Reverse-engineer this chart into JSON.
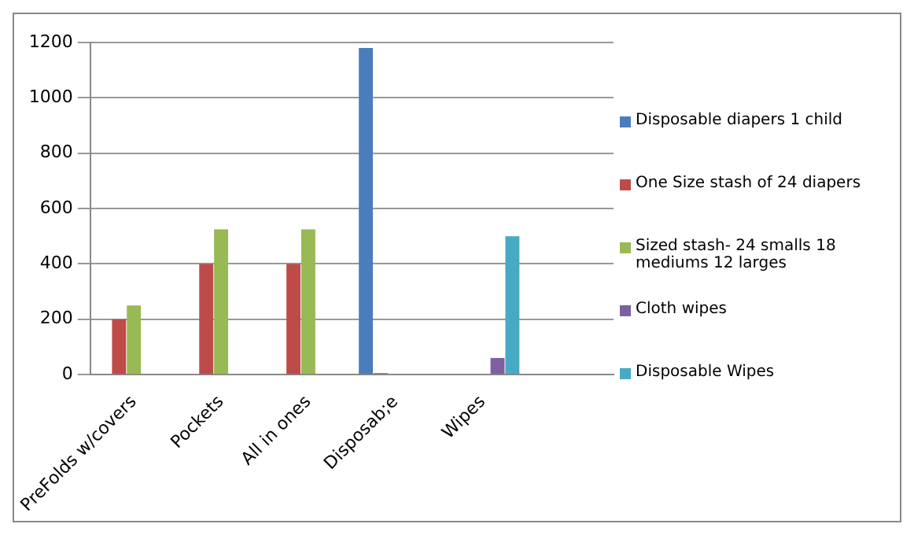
{
  "chart_data": {
    "type": "bar",
    "categories": [
      "PreFolds w/covers",
      "Pockets",
      "All in ones",
      "Disposab;e",
      "Wipes",
      null
    ],
    "series": [
      {
        "name": "Disposable diapers 1 child",
        "color": "#4a7ebb",
        "values": [
          null,
          null,
          null,
          1180,
          null,
          null
        ]
      },
      {
        "name": "One Size stash of 24 diapers",
        "color": "#be4b48",
        "values": [
          200,
          400,
          400,
          5,
          null,
          null
        ]
      },
      {
        "name": "Sized stash-  24 smalls 18 mediums 12 larges",
        "color": "#98b954",
        "values": [
          250,
          525,
          525,
          null,
          null,
          null
        ]
      },
      {
        "name": "Cloth wipes",
        "color": "#7d60a0",
        "values": [
          null,
          null,
          null,
          null,
          60,
          null
        ]
      },
      {
        "name": "Disposable Wipes",
        "color": "#46aac5",
        "values": [
          null,
          null,
          null,
          null,
          500,
          null
        ]
      }
    ],
    "ylim": [
      0,
      1200
    ],
    "yticks": [
      0,
      200,
      400,
      600,
      800,
      1000,
      1200
    ],
    "grid": "y",
    "legend": "right"
  }
}
